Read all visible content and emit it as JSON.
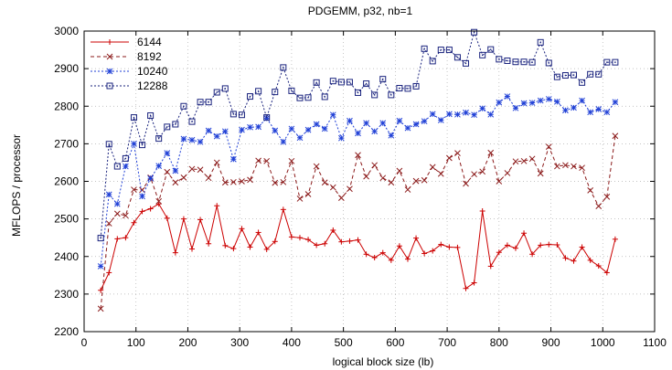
{
  "chart_data": {
    "type": "line",
    "title": "PDGEMM, p32, nb=1",
    "xlabel": "logical block size (lb)",
    "ylabel": "MFLOPS / processor",
    "xlim": [
      0,
      1100
    ],
    "ylim": [
      2200,
      3000
    ],
    "xticks": [
      0,
      100,
      200,
      300,
      400,
      500,
      600,
      700,
      800,
      900,
      1000,
      1100
    ],
    "yticks": [
      2200,
      2300,
      2400,
      2500,
      2600,
      2700,
      2800,
      2900,
      3000
    ],
    "grid": true,
    "legend_position": "top-left",
    "x": [
      32,
      48,
      64,
      80,
      96,
      112,
      128,
      144,
      160,
      176,
      192,
      208,
      224,
      240,
      256,
      272,
      288,
      304,
      320,
      336,
      352,
      368,
      384,
      400,
      416,
      432,
      448,
      464,
      480,
      496,
      512,
      528,
      544,
      560,
      576,
      592,
      608,
      624,
      640,
      656,
      672,
      688,
      704,
      720,
      736,
      752,
      768,
      784,
      800,
      816,
      832,
      848,
      864,
      880,
      896,
      912,
      928,
      944,
      960,
      976,
      992,
      1008,
      1024
    ],
    "series": [
      {
        "name": "6144",
        "color": "#cc0000",
        "line_style": "solid",
        "marker": "plus",
        "values": [
          2310,
          2357,
          2447,
          2450,
          2490,
          2520,
          2527,
          2540,
          2502,
          2410,
          2500,
          2420,
          2498,
          2434,
          2535,
          2429,
          2421,
          2474,
          2425,
          2464,
          2419,
          2440,
          2525,
          2452,
          2450,
          2445,
          2430,
          2434,
          2470,
          2439,
          2441,
          2444,
          2406,
          2397,
          2410,
          2390,
          2428,
          2393,
          2449,
          2408,
          2415,
          2432,
          2425,
          2424,
          2315,
          2330,
          2521,
          2374,
          2411,
          2430,
          2422,
          2462,
          2406,
          2430,
          2432,
          2431,
          2396,
          2388,
          2425,
          2390,
          2375,
          2357,
          2446
        ]
      },
      {
        "name": "8192",
        "color": "#8b1a1a",
        "line_style": "dashed",
        "marker": "x",
        "values": [
          2261,
          2488,
          2514,
          2509,
          2578,
          2577,
          2610,
          2547,
          2625,
          2597,
          2610,
          2633,
          2631,
          2609,
          2650,
          2597,
          2598,
          2600,
          2604,
          2655,
          2654,
          2596,
          2598,
          2654,
          2554,
          2566,
          2640,
          2597,
          2584,
          2556,
          2580,
          2670,
          2613,
          2643,
          2609,
          2597,
          2628,
          2578,
          2601,
          2603,
          2638,
          2620,
          2662,
          2675,
          2594,
          2619,
          2626,
          2676,
          2600,
          2622,
          2653,
          2654,
          2660,
          2621,
          2692,
          2640,
          2643,
          2640,
          2636,
          2576,
          2534,
          2559,
          2721
        ]
      },
      {
        "name": "10240",
        "color": "#1f3fd6",
        "line_style": "dotted",
        "marker": "star",
        "values": [
          2374,
          2565,
          2540,
          2640,
          2700,
          2560,
          2608,
          2641,
          2675,
          2628,
          2713,
          2710,
          2705,
          2735,
          2720,
          2733,
          2659,
          2737,
          2744,
          2745,
          2768,
          2735,
          2705,
          2740,
          2716,
          2737,
          2752,
          2740,
          2777,
          2715,
          2761,
          2728,
          2755,
          2733,
          2755,
          2722,
          2761,
          2742,
          2752,
          2760,
          2779,
          2763,
          2779,
          2778,
          2783,
          2777,
          2794,
          2778,
          2810,
          2826,
          2795,
          2808,
          2809,
          2815,
          2819,
          2812,
          2789,
          2796,
          2815,
          2784,
          2792,
          2784,
          2811
        ]
      },
      {
        "name": "12288",
        "color": "#1a237e",
        "line_style": "dotted",
        "marker": "square",
        "values": [
          2449,
          2699,
          2640,
          2661,
          2770,
          2697,
          2775,
          2714,
          2745,
          2752,
          2800,
          2759,
          2811,
          2811,
          2837,
          2847,
          2779,
          2777,
          2826,
          2840,
          2770,
          2838,
          2903,
          2841,
          2822,
          2823,
          2863,
          2825,
          2867,
          2864,
          2864,
          2836,
          2860,
          2830,
          2872,
          2830,
          2848,
          2847,
          2853,
          2953,
          2920,
          2950,
          2950,
          2930,
          2914,
          2997,
          2936,
          2951,
          2925,
          2921,
          2918,
          2918,
          2917,
          2970,
          2915,
          2878,
          2882,
          2883,
          2863,
          2885,
          2885,
          2917,
          2917
        ]
      }
    ]
  }
}
